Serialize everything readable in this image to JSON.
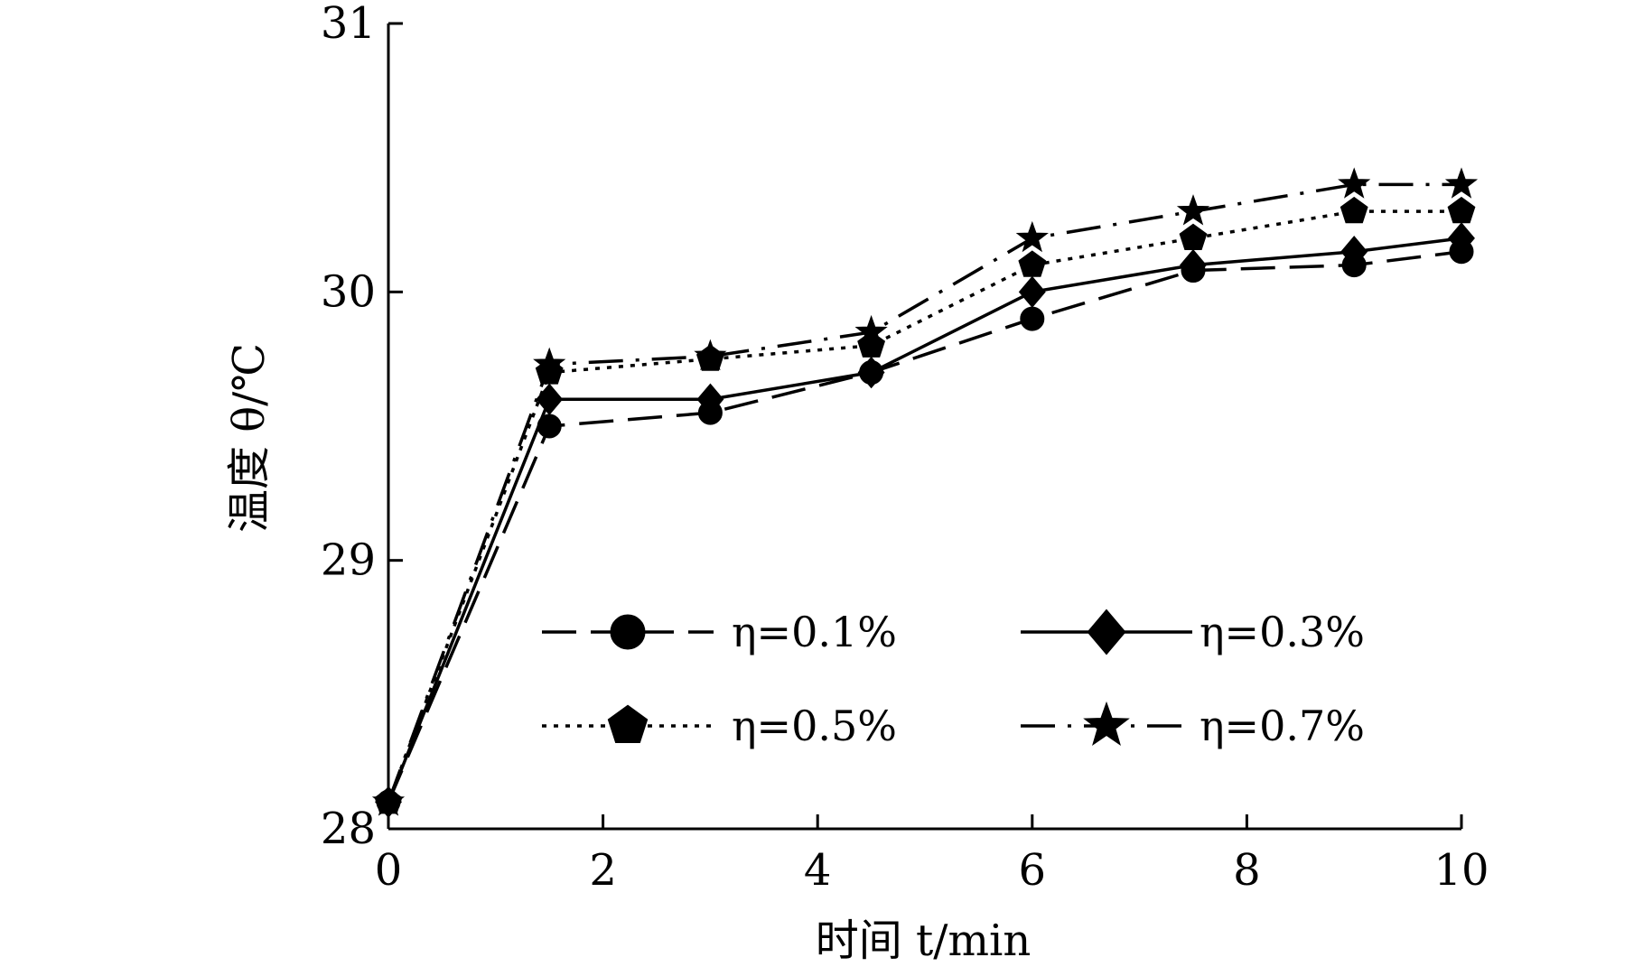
{
  "chart_data": {
    "type": "line",
    "xlabel": "时间 t/min",
    "ylabel": "温度 θ/℃",
    "xlim": [
      0,
      10
    ],
    "ylim": [
      28,
      31
    ],
    "xticks": [
      "0",
      "2",
      "4",
      "6",
      "8",
      "10"
    ],
    "yticks": [
      "28",
      "29",
      "30",
      "31"
    ],
    "x": [
      0,
      1.5,
      3,
      4.5,
      6,
      7.5,
      9,
      10
    ],
    "series": [
      {
        "name": "η=0.1%",
        "marker": "circle",
        "dash": "long-dash",
        "values": [
          28.1,
          29.5,
          29.55,
          29.7,
          29.9,
          30.08,
          30.1,
          30.15
        ]
      },
      {
        "name": "η=0.3%",
        "marker": "diamond",
        "dash": "solid",
        "values": [
          28.1,
          29.6,
          29.6,
          29.7,
          30.0,
          30.1,
          30.15,
          30.2
        ]
      },
      {
        "name": "η=0.5%",
        "marker": "pentagon",
        "dash": "dotted",
        "values": [
          28.1,
          29.7,
          29.75,
          29.8,
          30.1,
          30.2,
          30.3,
          30.3
        ]
      },
      {
        "name": "η=0.7%",
        "marker": "star",
        "dash": "dash-dot",
        "values": [
          28.1,
          29.73,
          29.76,
          29.85,
          30.2,
          30.3,
          30.4,
          30.4
        ]
      }
    ],
    "legend": {
      "placement": "lower-right",
      "columns": 2
    },
    "grid": false,
    "line_color": "#000000"
  }
}
